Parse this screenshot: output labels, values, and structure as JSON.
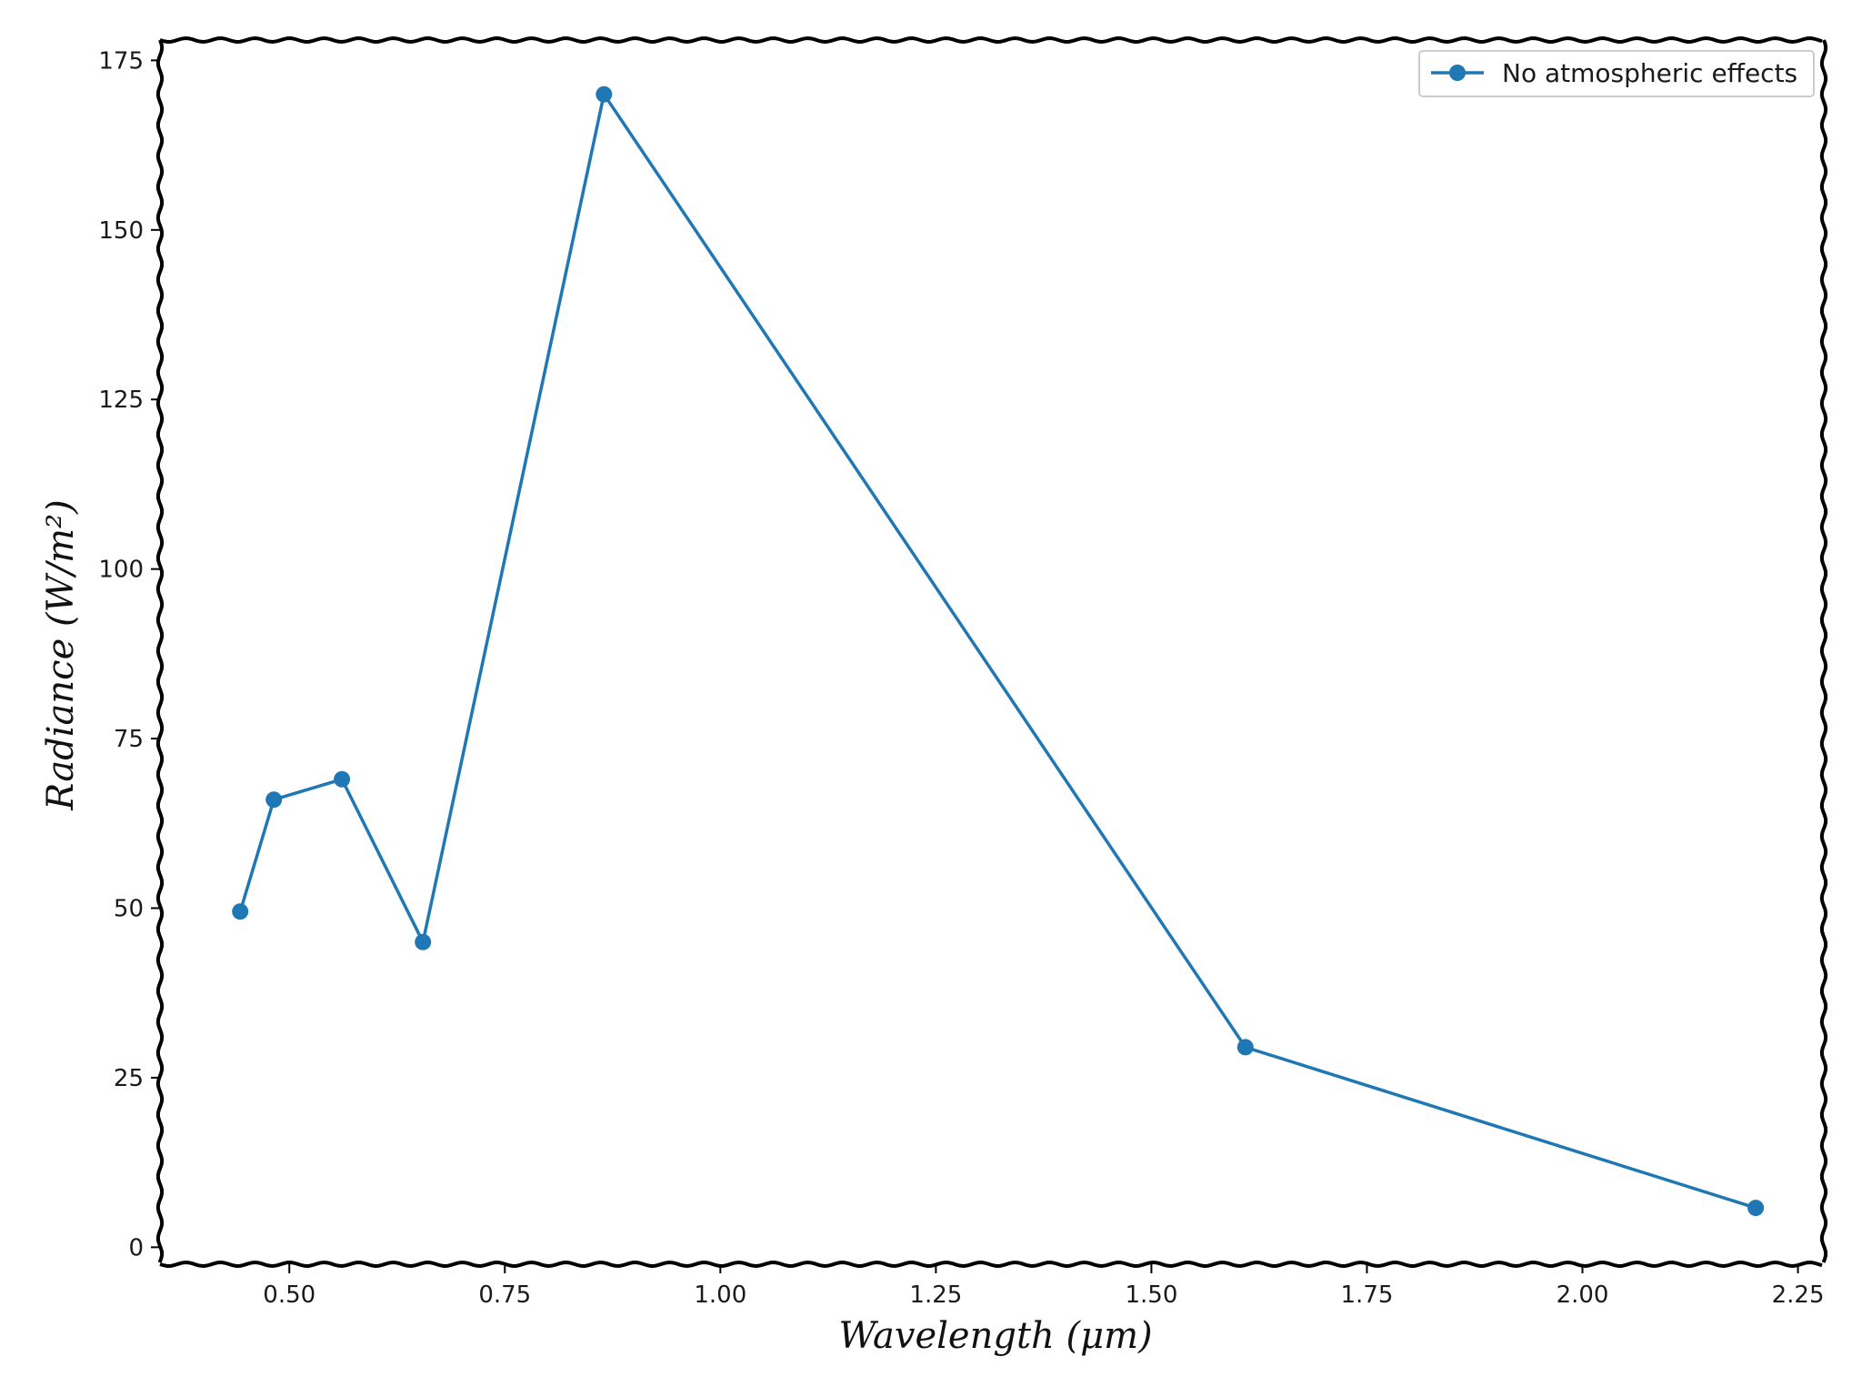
{
  "chart_data": {
    "type": "line",
    "xlabel": "Wavelength (μm)",
    "ylabel": "Radiance (W/m²)",
    "xlim": [
      0.35,
      2.28
    ],
    "ylim": [
      -2.5,
      178
    ],
    "xticks": [
      "0.50",
      "0.75",
      "1.00",
      "1.25",
      "1.50",
      "1.75",
      "2.00",
      "2.25"
    ],
    "yticks": [
      "0",
      "25",
      "50",
      "75",
      "100",
      "125",
      "150",
      "175"
    ],
    "legend_position": "top-right",
    "grid": false,
    "series": [
      {
        "name": "No atmospheric effects",
        "color": "#1f77b4",
        "marker": "circle",
        "x": [
          0.443,
          0.482,
          0.561,
          0.655,
          0.865,
          1.609,
          2.201
        ],
        "y": [
          49.5,
          66,
          69,
          45,
          170,
          29.5,
          5.8
        ]
      }
    ]
  }
}
